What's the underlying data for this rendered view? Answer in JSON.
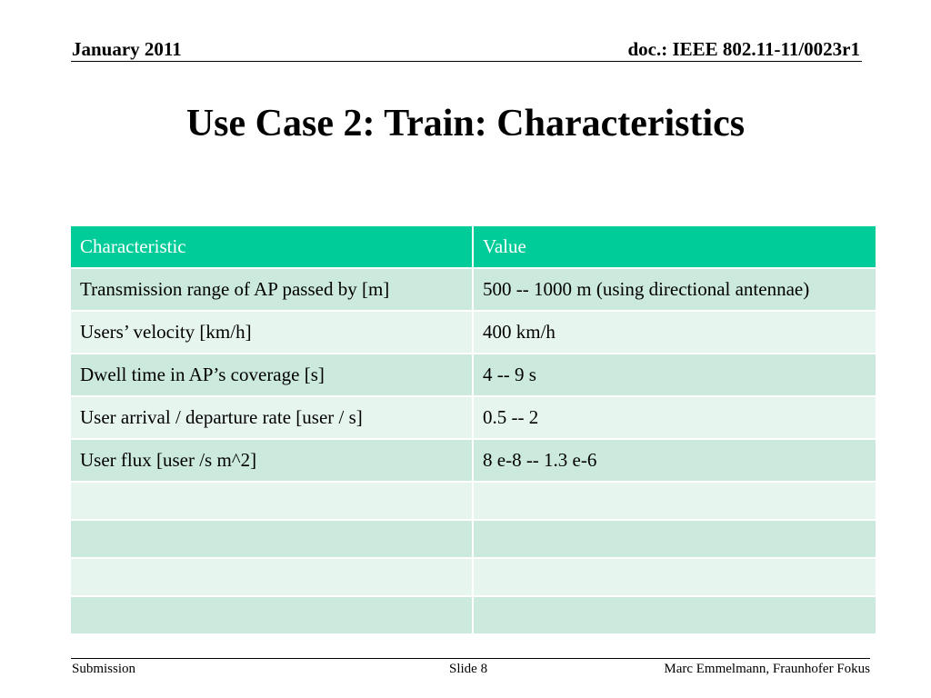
{
  "header": {
    "date": "January 2011",
    "doc_id": "doc.: IEEE 802.11-11/0023r1"
  },
  "title": "Use Case 2: Train: Characteristics",
  "table": {
    "columns": [
      "Characteristic",
      "Value"
    ],
    "rows": [
      [
        "Transmission range of AP passed by [m]",
        "500 -- 1000 m (using directional antennae)"
      ],
      [
        "Users’ velocity [km/h]",
        "400 km/h"
      ],
      [
        "Dwell time in AP’s coverage [s]",
        "4 -- 9 s"
      ],
      [
        "User arrival / departure rate [user / s]",
        "0.5 -- 2"
      ],
      [
        "User flux [user /s m^2]",
        "8 e-8  -- 1.3 e-6"
      ],
      [
        "",
        ""
      ],
      [
        "",
        ""
      ],
      [
        "",
        ""
      ],
      [
        "",
        ""
      ]
    ]
  },
  "colors": {
    "header_bg": "#00cc99",
    "row_dark": "#cce9de",
    "row_light": "#e7f5ef"
  },
  "footer": {
    "left": "Submission",
    "center": "Slide 8",
    "right": "Marc Emmelmann, Fraunhofer Fokus"
  }
}
